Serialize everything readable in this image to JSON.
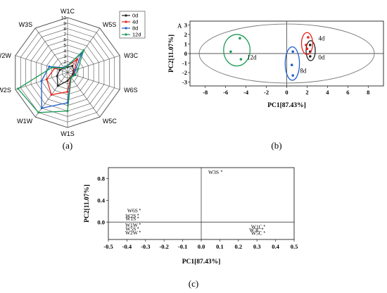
{
  "panel_labels": {
    "a": "(a)",
    "b": "(b)",
    "c": "(c)"
  },
  "colors": {
    "0d": "#222222",
    "4d": "#e8211b",
    "8d": "#1f5fc8",
    "12d": "#1f9a55",
    "grid": "#444444"
  },
  "chart_data": [
    {
      "id": "radar",
      "type": "radar",
      "axes": [
        "W1C",
        "W5S",
        "W3C",
        "W6S",
        "W5C",
        "W1S",
        "W1W",
        "W2S",
        "W2W",
        "W3S"
      ],
      "rlim": [
        0,
        10
      ],
      "ticks": [
        "0",
        "1",
        "2",
        "3",
        "4",
        "5",
        "6",
        "7",
        "8",
        "9",
        "10"
      ],
      "legend_position": "top-right",
      "series": [
        {
          "name": "0d",
          "values": [
            1.0,
            1.5,
            1.2,
            1.0,
            1.0,
            1.5,
            3.0,
            2.0,
            1.5,
            1.0
          ]
        },
        {
          "name": "4d",
          "values": [
            1.2,
            3.0,
            1.3,
            1.2,
            1.0,
            3.5,
            5.0,
            4.0,
            2.5,
            1.0
          ]
        },
        {
          "name": "8d",
          "values": [
            1.3,
            4.5,
            1.5,
            1.3,
            1.1,
            5.5,
            8.0,
            5.0,
            3.5,
            1.1
          ]
        },
        {
          "name": "12d",
          "values": [
            1.2,
            5.0,
            2.0,
            1.5,
            1.1,
            7.0,
            9.0,
            9.5,
            3.0,
            1.0
          ]
        }
      ]
    },
    {
      "id": "pca-scores",
      "type": "scatter",
      "corner_label": "A",
      "xlabel": "PC1[87.43%]",
      "ylabel": "PC2[11.07%]",
      "xlim": [
        -9.5,
        9.5
      ],
      "ylim": [
        -3.4,
        3.4
      ],
      "xticks": [
        -8,
        -6,
        -4,
        -2,
        0,
        2,
        4,
        6,
        8
      ],
      "yticks": [
        3,
        2,
        1,
        0,
        -1,
        -2,
        -3
      ],
      "groups": [
        {
          "name": "0d",
          "points": [
            [
              2.3,
              0.9
            ],
            [
              2.3,
              0.2
            ],
            [
              2.3,
              -0.3
            ]
          ]
        },
        {
          "name": "4d",
          "points": [
            [
              2.1,
              1.7
            ],
            [
              1.9,
              0.9
            ],
            [
              2.0,
              0.5
            ]
          ]
        },
        {
          "name": "8d",
          "points": [
            [
              0.6,
              0.2
            ],
            [
              0.5,
              -1.2
            ],
            [
              0.6,
              -2.3
            ]
          ]
        },
        {
          "name": "12d",
          "points": [
            [
              -4.6,
              1.6
            ],
            [
              -5.5,
              0.2
            ],
            [
              -4.5,
              -0.6
            ]
          ]
        }
      ]
    },
    {
      "id": "pca-loadings",
      "type": "scatter",
      "xlabel": "PC1[87.43%]",
      "ylabel": "PC2[11.07%]",
      "xlim": [
        -0.5,
        0.5
      ],
      "ylim": [
        -0.32,
        1.0
      ],
      "xticks": [
        "-0.5",
        "-0.4",
        "-0.3",
        "-0.2",
        "-0.1",
        "0.0",
        "0.1",
        "0.2",
        "0.3",
        "0.4",
        "0.5"
      ],
      "yticks": [
        "0.8",
        "0.4",
        "0.0"
      ],
      "points": [
        {
          "label": "W3S",
          "x": 0.11,
          "y": 0.92
        },
        {
          "label": "W6S",
          "x": -0.33,
          "y": 0.22
        },
        {
          "label": "W2S",
          "x": -0.34,
          "y": 0.12
        },
        {
          "label": "W1S",
          "x": -0.34,
          "y": 0.07
        },
        {
          "label": "W1W",
          "x": -0.33,
          "y": -0.05
        },
        {
          "label": "W5S",
          "x": -0.34,
          "y": -0.12
        },
        {
          "label": "W2W",
          "x": -0.33,
          "y": -0.19
        },
        {
          "label": "W1C",
          "x": 0.34,
          "y": -0.08
        },
        {
          "label": "W3C",
          "x": 0.33,
          "y": -0.14
        },
        {
          "label": "W5C",
          "x": 0.34,
          "y": -0.2
        }
      ]
    }
  ]
}
